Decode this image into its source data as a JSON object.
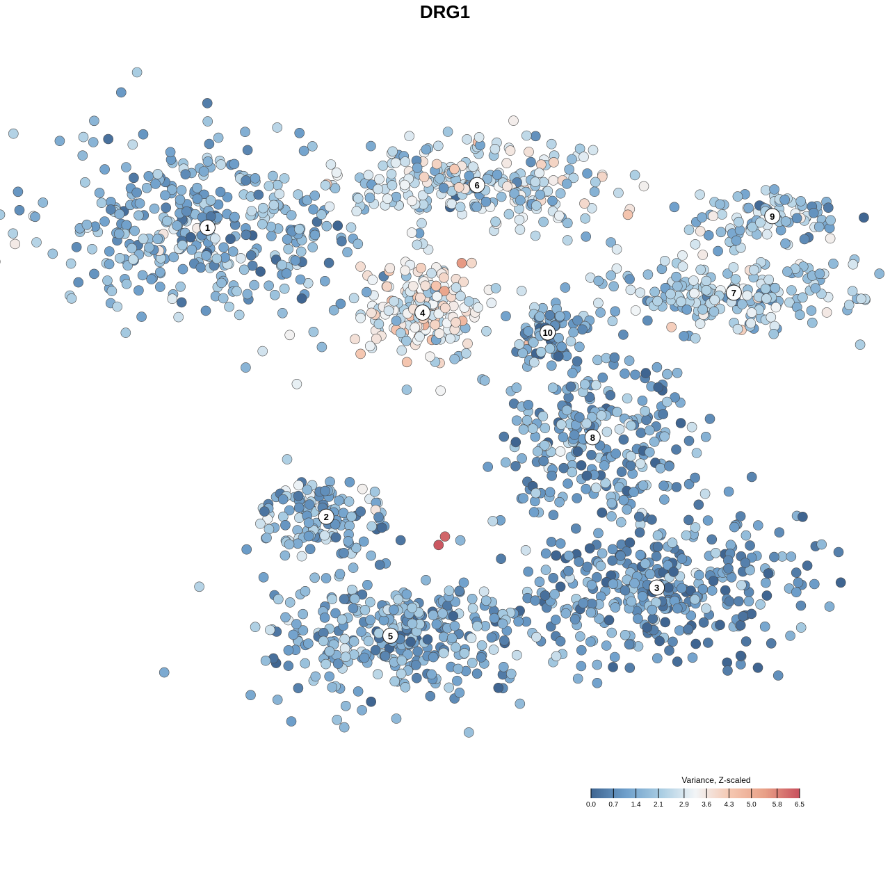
{
  "chart_data": {
    "type": "scatter",
    "title": "DRG1",
    "xlabel": "",
    "ylabel": "",
    "grid": false,
    "legend_position": "bottom-right",
    "colorbar": {
      "title": "Variance, Z-scaled",
      "ticks": [
        "0.0",
        "0.7",
        "1.4",
        "2.1",
        "2.9",
        "3.6",
        "4.3",
        "5.0",
        "5.8",
        "6.5"
      ],
      "min": 0.0,
      "max": 6.5,
      "colors": [
        "#3f6591",
        "#6e9fcb",
        "#a8cce2",
        "#f2f5f7",
        "#f5c7b1",
        "#e8a087",
        "#c8505d"
      ]
    },
    "clusters": [
      {
        "label": "1",
        "x": -0.74,
        "y": 0.62,
        "mean_value": 1.6
      },
      {
        "label": "2",
        "x": -0.37,
        "y": -0.4,
        "mean_value": 1.5
      },
      {
        "label": "3",
        "x": 0.66,
        "y": -0.65,
        "mean_value": 1.0
      },
      {
        "label": "4",
        "x": -0.07,
        "y": 0.32,
        "mean_value": 3.2
      },
      {
        "label": "5",
        "x": -0.17,
        "y": -0.82,
        "mean_value": 1.4
      },
      {
        "label": "6",
        "x": 0.1,
        "y": 0.77,
        "mean_value": 2.5
      },
      {
        "label": "7",
        "x": 0.9,
        "y": 0.39,
        "mean_value": 2.2
      },
      {
        "label": "8",
        "x": 0.46,
        "y": -0.12,
        "mean_value": 1.3
      },
      {
        "label": "9",
        "x": 1.02,
        "y": 0.66,
        "mean_value": 1.9
      },
      {
        "label": "10",
        "x": 0.32,
        "y": 0.25,
        "mean_value": 1.1
      }
    ],
    "xlim": [
      -1.3,
      1.3
    ],
    "ylim": [
      -1.3,
      1.3
    ]
  }
}
